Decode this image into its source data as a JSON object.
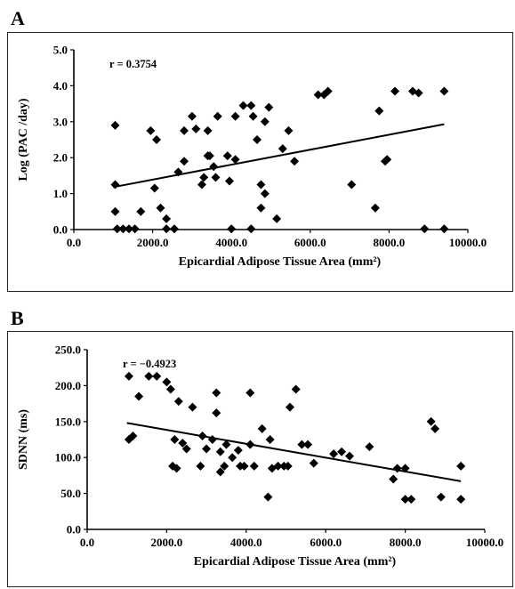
{
  "chart_data": [
    {
      "panel": "A",
      "type": "scatter",
      "annotation": "r = 0.3754",
      "xlabel": "Epicardial Adipose Tissue Area (mm²)",
      "ylabel": "Log (PAC /day)",
      "xlim": [
        0,
        10000
      ],
      "ylim": [
        0,
        5
      ],
      "xticks": [
        "0.0",
        "2000.0",
        "4000.0",
        "6000.0",
        "8000.0",
        "10000.0"
      ],
      "yticks": [
        "0.0",
        "1.0",
        "2.0",
        "3.0",
        "4.0",
        "5.0"
      ],
      "grid": false,
      "trendline": [
        [
          1000,
          1.18
        ],
        [
          9400,
          2.93
        ]
      ],
      "points": [
        [
          1050,
          2.9
        ],
        [
          1050,
          1.25
        ],
        [
          1050,
          0.5
        ],
        [
          1100,
          0.02
        ],
        [
          1250,
          0.02
        ],
        [
          1400,
          0.02
        ],
        [
          1550,
          0.02
        ],
        [
          1700,
          0.5
        ],
        [
          1950,
          2.75
        ],
        [
          2050,
          1.15
        ],
        [
          2100,
          2.5
        ],
        [
          2200,
          0.6
        ],
        [
          2350,
          0.3
        ],
        [
          2350,
          0.02
        ],
        [
          2550,
          0.02
        ],
        [
          2650,
          1.6
        ],
        [
          2800,
          2.75
        ],
        [
          2800,
          1.9
        ],
        [
          3000,
          3.15
        ],
        [
          3100,
          2.8
        ],
        [
          3250,
          1.25
        ],
        [
          3300,
          1.45
        ],
        [
          3400,
          2.75
        ],
        [
          3400,
          2.05
        ],
        [
          3450,
          2.05
        ],
        [
          3550,
          1.75
        ],
        [
          3600,
          1.45
        ],
        [
          3650,
          3.15
        ],
        [
          3900,
          2.05
        ],
        [
          3950,
          1.35
        ],
        [
          4000,
          0.02
        ],
        [
          4100,
          3.15
        ],
        [
          4100,
          1.95
        ],
        [
          4300,
          3.45
        ],
        [
          4500,
          3.45
        ],
        [
          4550,
          3.15
        ],
        [
          4500,
          0.02
        ],
        [
          4650,
          2.5
        ],
        [
          4750,
          0.6
        ],
        [
          4750,
          1.25
        ],
        [
          4850,
          3.0
        ],
        [
          4850,
          1.0
        ],
        [
          4950,
          3.4
        ],
        [
          5150,
          0.3
        ],
        [
          5300,
          2.25
        ],
        [
          5450,
          2.75
        ],
        [
          5600,
          1.9
        ],
        [
          6200,
          3.75
        ],
        [
          6350,
          3.75
        ],
        [
          6450,
          3.85
        ],
        [
          7050,
          1.25
        ],
        [
          7650,
          0.6
        ],
        [
          7750,
          3.3
        ],
        [
          7900,
          1.9
        ],
        [
          7950,
          1.95
        ],
        [
          8150,
          3.85
        ],
        [
          8600,
          3.85
        ],
        [
          8750,
          3.8
        ],
        [
          8900,
          0.02
        ],
        [
          9400,
          3.85
        ],
        [
          9400,
          0.02
        ]
      ]
    },
    {
      "panel": "B",
      "type": "scatter",
      "annotation": "r = −0.4923",
      "xlabel": "Epicardial Adipose Tissue Area (mm²)",
      "ylabel": "SDNN (ms)",
      "xlim": [
        0,
        10000
      ],
      "ylim": [
        0,
        250
      ],
      "xticks": [
        "0.0",
        "2000.0",
        "4000.0",
        "6000.0",
        "8000.0",
        "10000.0"
      ],
      "yticks": [
        "0.0",
        "50.0",
        "100.0",
        "150.0",
        "200.0",
        "250.0"
      ],
      "grid": false,
      "trendline": [
        [
          1000,
          148
        ],
        [
          9400,
          67
        ]
      ],
      "points": [
        [
          1050,
          213
        ],
        [
          1050,
          125
        ],
        [
          1150,
          130
        ],
        [
          1300,
          185
        ],
        [
          1550,
          213
        ],
        [
          1750,
          213
        ],
        [
          2000,
          205
        ],
        [
          2100,
          195
        ],
        [
          2150,
          88
        ],
        [
          2200,
          125
        ],
        [
          2250,
          85
        ],
        [
          2300,
          178
        ],
        [
          2400,
          120
        ],
        [
          2500,
          112
        ],
        [
          2650,
          170
        ],
        [
          2850,
          88
        ],
        [
          2900,
          130
        ],
        [
          3000,
          112
        ],
        [
          3150,
          125
        ],
        [
          3250,
          162
        ],
        [
          3250,
          190
        ],
        [
          3350,
          108
        ],
        [
          3350,
          80
        ],
        [
          3450,
          88
        ],
        [
          3500,
          118
        ],
        [
          3650,
          100
        ],
        [
          3800,
          110
        ],
        [
          3850,
          88
        ],
        [
          3950,
          88
        ],
        [
          4100,
          118
        ],
        [
          4100,
          190
        ],
        [
          4200,
          88
        ],
        [
          4400,
          140
        ],
        [
          4550,
          45
        ],
        [
          4600,
          125
        ],
        [
          4650,
          85
        ],
        [
          4800,
          88
        ],
        [
          4950,
          88
        ],
        [
          5050,
          88
        ],
        [
          5100,
          170
        ],
        [
          5250,
          195
        ],
        [
          5400,
          118
        ],
        [
          5550,
          118
        ],
        [
          5700,
          92
        ],
        [
          6200,
          105
        ],
        [
          6400,
          108
        ],
        [
          6600,
          102
        ],
        [
          7100,
          115
        ],
        [
          7700,
          70
        ],
        [
          7800,
          85
        ],
        [
          8000,
          85
        ],
        [
          8000,
          42
        ],
        [
          8150,
          42
        ],
        [
          8650,
          150
        ],
        [
          8750,
          140
        ],
        [
          8900,
          45
        ],
        [
          9400,
          88
        ],
        [
          9400,
          42
        ]
      ]
    }
  ]
}
